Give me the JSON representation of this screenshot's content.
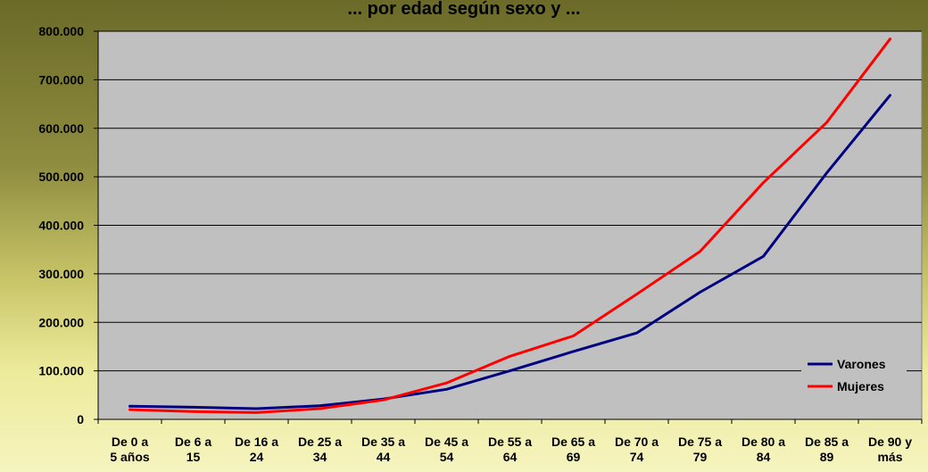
{
  "chart_data": {
    "type": "line",
    "title": "... por edad según sexo y ...",
    "categories": [
      [
        "De 0 a",
        "5 años"
      ],
      [
        "De 6 a",
        "15"
      ],
      [
        "De 16 a",
        "24"
      ],
      [
        "De 25 a",
        "34"
      ],
      [
        "De 35 a",
        "44"
      ],
      [
        "De 45 a",
        "54"
      ],
      [
        "De 55 a",
        "64"
      ],
      [
        "De 65 a",
        "69"
      ],
      [
        "De 70 a",
        "74"
      ],
      [
        "De 75 a",
        "79"
      ],
      [
        "De 80 a",
        "84"
      ],
      [
        "De 85 a",
        "89"
      ],
      [
        "De 90 y",
        "más"
      ]
    ],
    "series": [
      {
        "name": "Varones",
        "color": "#000080",
        "values": [
          27000,
          25000,
          22000,
          28000,
          42000,
          62000,
          100000,
          140000,
          178000,
          262000,
          336000,
          508000,
          668000
        ]
      },
      {
        "name": "Mujeres",
        "color": "#ff0000",
        "values": [
          20000,
          16000,
          14000,
          22000,
          40000,
          75000,
          130000,
          172000,
          258000,
          346000,
          488000,
          612000,
          784000
        ]
      }
    ],
    "yticks": [
      "800.000",
      "700.000",
      "600.000",
      "500.000",
      "400.000",
      "300.000",
      "200.000",
      "100.000",
      "0"
    ],
    "ylim": [
      0,
      800000
    ],
    "grid": true,
    "plot_background": "#c0c0c0",
    "legend_position": "bottom-right"
  }
}
